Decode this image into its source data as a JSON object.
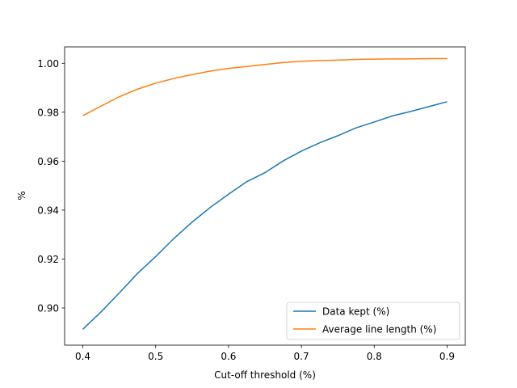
{
  "chart_data": {
    "type": "line",
    "title": "",
    "xlabel": "Cut-off threshold (%)",
    "ylabel": "%",
    "xlim": [
      0.375,
      0.925
    ],
    "ylim": [
      0.8848,
      1.0067
    ],
    "x_ticks": [
      0.4,
      0.5,
      0.6,
      0.7,
      0.8,
      0.9
    ],
    "x_tick_labels": [
      "0.4",
      "0.5",
      "0.6",
      "0.7",
      "0.8",
      "0.9"
    ],
    "y_ticks": [
      0.9,
      0.92,
      0.94,
      0.96,
      0.98,
      1.0
    ],
    "y_tick_labels": [
      "0.90",
      "0.92",
      "0.94",
      "0.96",
      "0.98",
      "1.00"
    ],
    "grid": false,
    "legend_position": "lower right",
    "x": [
      0.4,
      0.425,
      0.45,
      0.475,
      0.5,
      0.525,
      0.55,
      0.575,
      0.6,
      0.625,
      0.65,
      0.675,
      0.7,
      0.725,
      0.75,
      0.775,
      0.8,
      0.825,
      0.85,
      0.875,
      0.9
    ],
    "series": [
      {
        "name": "Data kept (%)",
        "color": "#1f77b4",
        "values": [
          0.8913,
          0.8984,
          0.9061,
          0.9141,
          0.921,
          0.9284,
          0.9351,
          0.9411,
          0.9465,
          0.9516,
          0.9553,
          0.9601,
          0.9641,
          0.9675,
          0.9704,
          0.9736,
          0.976,
          0.9785,
          0.9803,
          0.9823,
          0.9843
        ]
      },
      {
        "name": "Average line length (%)",
        "color": "#ff7f0e",
        "values": [
          0.9786,
          0.9825,
          0.9863,
          0.9894,
          0.9919,
          0.9938,
          0.9954,
          0.9968,
          0.9979,
          0.9987,
          0.9995,
          1.0003,
          1.0008,
          1.0011,
          1.0013,
          1.0016,
          1.0017,
          1.0018,
          1.0018,
          1.0019,
          1.0019
        ]
      }
    ]
  }
}
